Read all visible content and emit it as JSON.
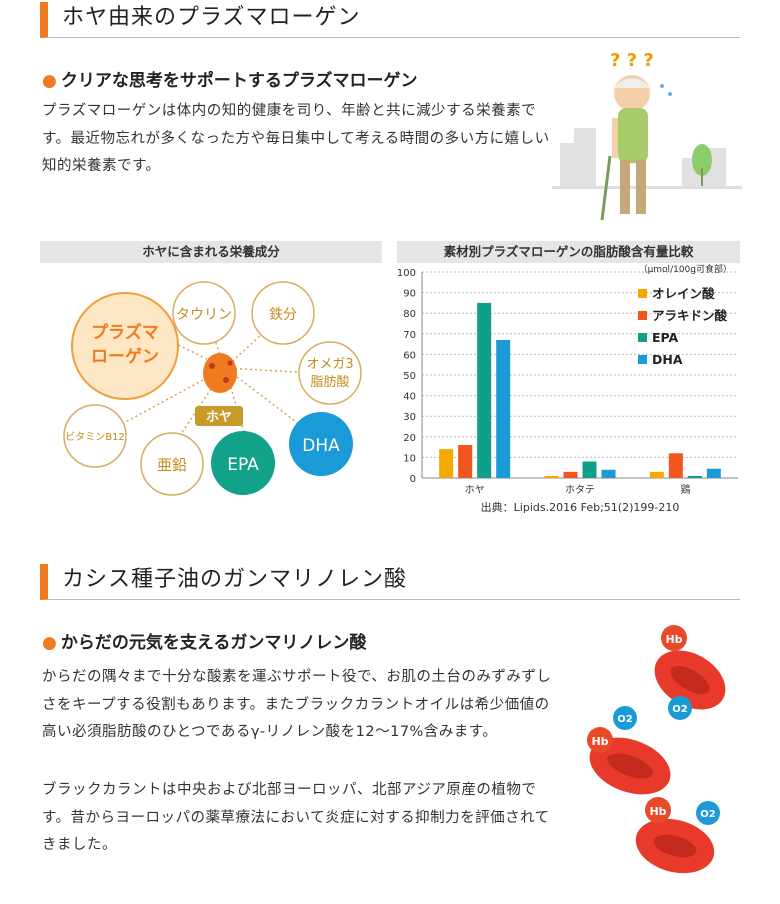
{
  "section1": {
    "title": "ホヤ由来のプラズマローゲン",
    "subtitle": "クリアな思考をサポートするプラズマローゲン",
    "paragraph": "プラズマローゲンは体内の知的健康を司り、年齢と共に減少する栄養素です。最近物忘れが多くなった方や毎日集中して考える時間の多い方に嬉しい知的栄養素です。"
  },
  "nutrients": {
    "heading": "ホヤに含まれる栄養成分",
    "center_label": "ホヤ",
    "items": {
      "plasmalogen": "プラズマ\nローゲン",
      "taurine": "タウリン",
      "iron": "鉄分",
      "omega3": "オメガ3\n脂肪酸",
      "vitamin_b12": "ビタミンB12",
      "zinc": "亜鉛",
      "epa": "EPA",
      "dha": "DHA"
    }
  },
  "chart_data": {
    "type": "bar",
    "title": "素材別プラズマローゲンの脂肪酸含有量比較",
    "unit": "（μmol/100g可食部）",
    "categories": [
      "ホヤ",
      "ホタテ",
      "鶏"
    ],
    "series": [
      {
        "name": "オレイン酸",
        "color": "#f5a800",
        "values": [
          14,
          1,
          3
        ]
      },
      {
        "name": "アラキドン酸",
        "color": "#f0561e",
        "values": [
          16,
          3,
          12
        ]
      },
      {
        "name": "EPA",
        "color": "#10a08a",
        "values": [
          85,
          8,
          1
        ]
      },
      {
        "name": "DHA",
        "color": "#1a9bd7",
        "values": [
          67,
          4,
          4.5
        ]
      }
    ],
    "ylim": [
      0,
      100
    ],
    "yticks": [
      0,
      10,
      20,
      30,
      40,
      50,
      60,
      70,
      80,
      90,
      100
    ],
    "grid": true,
    "legend_position": "top-right",
    "source": "出典：Lipids.2016 Feb;51(2)199-210"
  },
  "section2": {
    "title": "カシス種子油のガンマリノレン酸",
    "subtitle": "からだの元気を支えるガンマリノレン酸",
    "paragraph1": "からだの隅々まで十分な酸素を運ぶサポート役で、お肌の土台のみずみずしさをキープする役割もあります。またブラックカラントオイルは希少価値の高い必須脂肪酸のひとつであるγ-リノレン酸を12〜17%含みます。",
    "paragraph2": "ブラックカラントは中央および北部ヨーロッパ、北部アジア原産の植物です。昔からヨーロッパの薬草療法において炎症に対する抑制力を評価されてきました。"
  },
  "illustrations": {
    "question_marks": "? ? ?",
    "hb": "Hb",
    "o2": "O2"
  }
}
